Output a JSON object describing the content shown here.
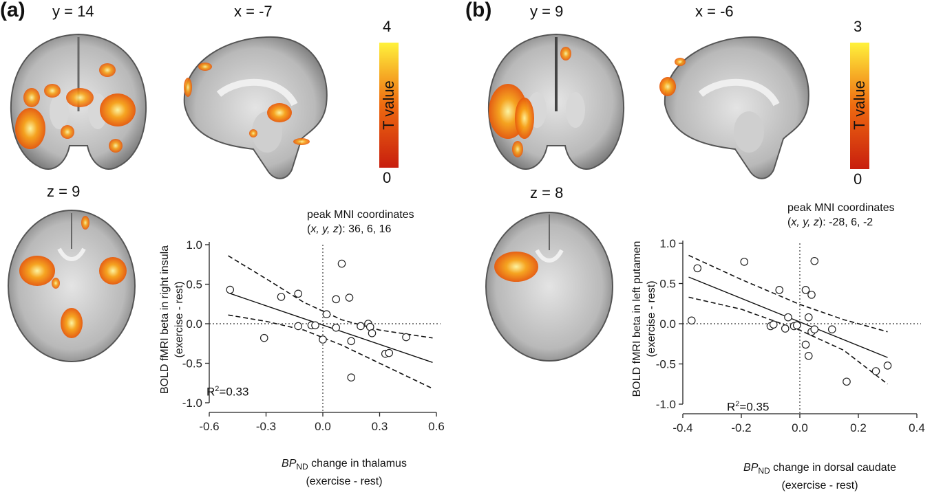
{
  "panel_a": {
    "label": "(a)",
    "slices": {
      "coronal": "y = 14",
      "sagittal": "x = -7",
      "axial": "z = 9"
    },
    "colorbar": {
      "max": "4",
      "min": "0",
      "title": "T value"
    },
    "annotation": {
      "line1": "peak MNI coordinates",
      "line2_prefix": "(",
      "line2_axes": "x, y, z",
      "line2_suffix": "): 36, 6, 16"
    },
    "r2": {
      "prefix": "R",
      "sup": "2",
      "value": "=0.33"
    },
    "ylabel": {
      "line1": "BOLD fMRI beta in right insula",
      "line2": "(exercise - rest)"
    },
    "xlabel": {
      "italic": "BP",
      "sub": "ND",
      "rest": " change in thalamus",
      "line2": "(exercise - rest)"
    }
  },
  "panel_b": {
    "label": "(b)",
    "slices": {
      "coronal": "y = 9",
      "sagittal": "x = -6",
      "axial": "z = 8"
    },
    "colorbar": {
      "max": "3",
      "min": "0",
      "title": "T value"
    },
    "annotation": {
      "line1": "peak MNI coordinates",
      "line2_prefix": "(",
      "line2_axes": "x, y, z",
      "line2_suffix": "): -28, 6, -2"
    },
    "r2": {
      "prefix": "R",
      "sup": "2",
      "value": "=0.35"
    },
    "ylabel": {
      "line1": "BOLD fMRI beta in left putamen",
      "line2": "(exercise - rest)"
    },
    "xlabel": {
      "italic": "BP",
      "sub": "ND",
      "rest": " change in dorsal caudate",
      "line2": "(exercise - rest)"
    }
  },
  "chart_data": [
    {
      "type": "scatter",
      "xlim": [
        -0.6,
        0.6
      ],
      "ylim": [
        -1.0,
        1.0
      ],
      "x_ticks": [
        "-0.6",
        "-0.3",
        "0.0",
        "0.3",
        "0.6"
      ],
      "y_ticks": [
        "1.0",
        "0.5",
        "0.0",
        "-0.5",
        "-1.0"
      ],
      "x_tick_values": [
        -0.6,
        -0.3,
        0.0,
        0.3,
        0.6
      ],
      "y_tick_values": [
        1.0,
        0.5,
        0.0,
        -0.5,
        -1.0
      ],
      "points": [
        [
          -0.49,
          0.43
        ],
        [
          -0.31,
          -0.18
        ],
        [
          -0.22,
          0.34
        ],
        [
          -0.13,
          0.38
        ],
        [
          -0.13,
          -0.03
        ],
        [
          -0.06,
          -0.02
        ],
        [
          -0.04,
          -0.02
        ],
        [
          0.0,
          -0.2
        ],
        [
          0.02,
          0.12
        ],
        [
          0.07,
          0.31
        ],
        [
          0.07,
          -0.05
        ],
        [
          0.1,
          0.76
        ],
        [
          0.14,
          0.33
        ],
        [
          0.15,
          -0.22
        ],
        [
          0.15,
          -0.68
        ],
        [
          0.2,
          -0.03
        ],
        [
          0.24,
          0.0
        ],
        [
          0.25,
          -0.04
        ],
        [
          0.26,
          -0.12
        ],
        [
          0.33,
          -0.38
        ],
        [
          0.35,
          -0.37
        ],
        [
          0.44,
          -0.17
        ]
      ],
      "fit": [
        [
          -0.5,
          0.39
        ],
        [
          0.58,
          -0.49
        ]
      ],
      "ci_upper": [
        [
          -0.5,
          0.86
        ],
        [
          -0.3,
          0.57
        ],
        [
          -0.1,
          0.27
        ],
        [
          0.1,
          0.05
        ],
        [
          0.3,
          -0.08
        ],
        [
          0.58,
          -0.18
        ]
      ],
      "ci_lower": [
        [
          -0.5,
          0.11
        ],
        [
          -0.3,
          0.03
        ],
        [
          -0.1,
          -0.08
        ],
        [
          0.1,
          -0.27
        ],
        [
          0.3,
          -0.5
        ],
        [
          0.58,
          -0.82
        ]
      ]
    },
    {
      "type": "scatter",
      "xlim": [
        -0.4,
        0.4
      ],
      "ylim": [
        -1.0,
        1.0
      ],
      "x_ticks": [
        "-0.4",
        "-0.2",
        "0.0",
        "0.2",
        "0.4"
      ],
      "y_ticks": [
        "1.0",
        "0.5",
        "0.0",
        "-0.5",
        "-1.0"
      ],
      "x_tick_values": [
        -0.4,
        -0.2,
        0.0,
        0.2,
        0.4
      ],
      "y_tick_values": [
        1.0,
        0.5,
        0.0,
        -0.5,
        -1.0
      ],
      "points": [
        [
          -0.37,
          0.04
        ],
        [
          -0.35,
          0.69
        ],
        [
          -0.19,
          0.77
        ],
        [
          -0.1,
          -0.03
        ],
        [
          -0.09,
          -0.01
        ],
        [
          -0.07,
          0.42
        ],
        [
          -0.05,
          -0.06
        ],
        [
          -0.04,
          0.08
        ],
        [
          -0.02,
          -0.03
        ],
        [
          -0.01,
          -0.02
        ],
        [
          0.02,
          0.42
        ],
        [
          0.02,
          -0.26
        ],
        [
          0.03,
          0.08
        ],
        [
          0.03,
          -0.4
        ],
        [
          0.04,
          0.36
        ],
        [
          0.04,
          -0.1
        ],
        [
          0.05,
          -0.07
        ],
        [
          0.05,
          0.78
        ],
        [
          0.11,
          -0.07
        ],
        [
          0.16,
          -0.72
        ],
        [
          0.26,
          -0.59
        ],
        [
          0.3,
          -0.52
        ]
      ],
      "fit": [
        [
          -0.38,
          0.58
        ],
        [
          0.3,
          -0.42
        ]
      ],
      "ci_upper": [
        [
          -0.38,
          0.85
        ],
        [
          -0.2,
          0.55
        ],
        [
          0.0,
          0.24
        ],
        [
          0.15,
          0.05
        ],
        [
          0.3,
          -0.1
        ]
      ],
      "ci_lower": [
        [
          -0.38,
          0.33
        ],
        [
          -0.2,
          0.18
        ],
        [
          0.0,
          -0.08
        ],
        [
          0.15,
          -0.33
        ],
        [
          0.3,
          -0.75
        ]
      ]
    }
  ]
}
